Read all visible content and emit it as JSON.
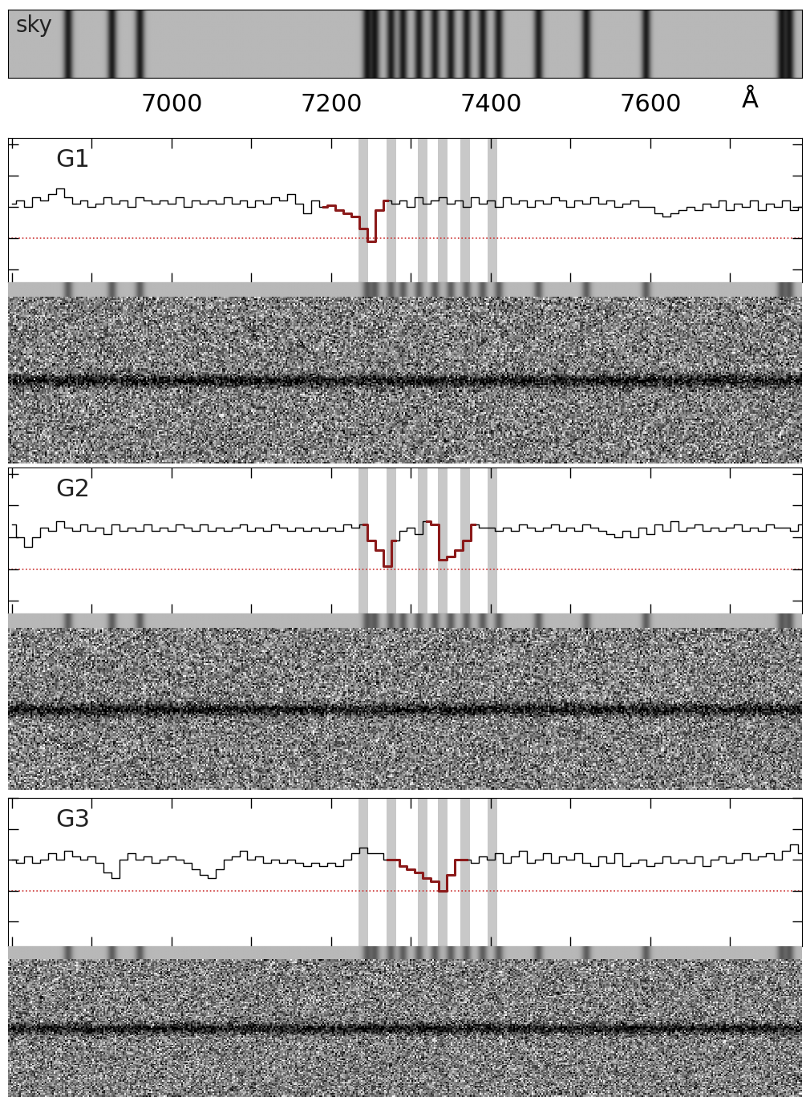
{
  "xlim": [
    6795,
    7790
  ],
  "xticks": [
    7000,
    7200,
    7400,
    7600
  ],
  "x_unit": "Å",
  "sky": {
    "label": "sky",
    "sky_lines": [
      6870,
      6925,
      6960,
      7245,
      7255,
      7275,
      7290,
      7310,
      7330,
      7350,
      7370,
      7390,
      7410,
      7460,
      7520,
      7595,
      7765,
      7775
    ]
  },
  "x": [
    6800,
    6810,
    6820,
    6830,
    6840,
    6850,
    6860,
    6870,
    6880,
    6890,
    6900,
    6910,
    6920,
    6930,
    6940,
    6950,
    6960,
    6970,
    6980,
    6990,
    7000,
    7010,
    7020,
    7030,
    7040,
    7050,
    7060,
    7070,
    7080,
    7090,
    7100,
    7110,
    7120,
    7130,
    7140,
    7150,
    7160,
    7170,
    7180,
    7190,
    7200,
    7210,
    7220,
    7230,
    7240,
    7250,
    7260,
    7270,
    7280,
    7290,
    7300,
    7310,
    7320,
    7330,
    7340,
    7350,
    7360,
    7370,
    7380,
    7390,
    7400,
    7410,
    7420,
    7430,
    7440,
    7450,
    7460,
    7470,
    7480,
    7490,
    7500,
    7510,
    7520,
    7530,
    7540,
    7550,
    7560,
    7570,
    7580,
    7590,
    7600,
    7610,
    7620,
    7630,
    7640,
    7650,
    7660,
    7670,
    7680,
    7690,
    7700,
    7710,
    7720,
    7730,
    7740,
    7750,
    7760,
    7770,
    7780,
    7790
  ],
  "chart_data": [
    {
      "type": "line",
      "label": "G1",
      "ylim": [
        -1.4,
        3.2
      ],
      "yticks": [
        -1,
        0,
        1,
        2,
        3
      ],
      "xticks": [
        6800,
        6900,
        7000,
        7100,
        7200,
        7300,
        7400,
        7500,
        7600,
        7700
      ],
      "tick_labels": false,
      "color": "#000000",
      "bands": [
        [
          7234,
          7246
        ],
        [
          7269,
          7281
        ],
        [
          7309,
          7321
        ],
        [
          7334,
          7346
        ],
        [
          7362,
          7374
        ],
        [
          7396,
          7408
        ]
      ],
      "reference_line": {
        "value": 0,
        "color": "#cc3333",
        "line_style": "dotted"
      },
      "highlight": {
        "color": "#8b1a1a",
        "ranges": [
          [
            7190,
            7270
          ]
        ]
      },
      "values": [
        1.1,
        1.2,
        1.0,
        1.3,
        1.2,
        1.4,
        1.6,
        1.3,
        1.1,
        1.2,
        1.0,
        1.1,
        1.3,
        1.1,
        1.2,
        1.0,
        1.3,
        1.2,
        1.1,
        1.2,
        1.1,
        1.3,
        1.0,
        1.2,
        1.1,
        1.2,
        1.1,
        1.3,
        1.1,
        1.2,
        1.0,
        1.2,
        1.1,
        1.3,
        1.2,
        1.4,
        1.1,
        0.8,
        1.2,
        1.0,
        1.05,
        0.9,
        0.8,
        0.7,
        0.3,
        -0.1,
        0.9,
        1.2,
        1.1,
        1.2,
        1.0,
        1.3,
        1.1,
        1.2,
        1.3,
        1.1,
        1.2,
        1.0,
        1.3,
        1.1,
        1.2,
        1.0,
        1.3,
        1.1,
        1.2,
        1.0,
        1.2,
        1.1,
        1.3,
        1.2,
        1.0,
        1.2,
        1.1,
        1.3,
        1.1,
        1.2,
        1.0,
        1.1,
        1.2,
        1.0,
        1.0,
        0.8,
        0.7,
        0.8,
        0.9,
        1.0,
        0.9,
        1.1,
        1.0,
        1.2,
        0.9,
        1.1,
        1.0,
        1.2,
        0.9,
        1.1,
        1.0,
        1.2,
        0.9,
        1.0
      ]
    },
    {
      "type": "line",
      "label": "G2",
      "ylim": [
        -1.4,
        3.2
      ],
      "yticks": [
        -1,
        0,
        1,
        2,
        3
      ],
      "xticks": [
        6800,
        6900,
        7000,
        7100,
        7200,
        7300,
        7400,
        7500,
        7600,
        7700
      ],
      "tick_labels": false,
      "color": "#000000",
      "bands": [
        [
          7234,
          7246
        ],
        [
          7269,
          7281
        ],
        [
          7309,
          7321
        ],
        [
          7334,
          7346
        ],
        [
          7362,
          7374
        ],
        [
          7396,
          7408
        ]
      ],
      "reference_line": {
        "value": 0,
        "color": "#cc3333",
        "line_style": "dotted"
      },
      "highlight": {
        "color": "#8b1a1a",
        "ranges": [
          [
            7240,
            7280
          ],
          [
            7320,
            7380
          ]
        ]
      },
      "values": [
        1.4,
        1.0,
        0.7,
        1.0,
        1.3,
        1.2,
        1.5,
        1.3,
        1.2,
        1.4,
        1.2,
        1.3,
        1.1,
        1.4,
        1.2,
        1.3,
        1.2,
        1.4,
        1.2,
        1.3,
        1.2,
        1.4,
        1.3,
        1.2,
        1.4,
        1.2,
        1.3,
        1.2,
        1.3,
        1.4,
        1.2,
        1.3,
        1.2,
        1.4,
        1.3,
        1.2,
        1.3,
        1.2,
        1.3,
        1.2,
        1.3,
        1.2,
        1.4,
        1.3,
        1.4,
        0.9,
        0.6,
        0.1,
        0.9,
        1.2,
        1.3,
        1.1,
        1.5,
        1.4,
        0.3,
        0.4,
        0.6,
        0.9,
        1.4,
        1.3,
        1.3,
        1.2,
        1.3,
        1.2,
        1.4,
        1.3,
        1.2,
        1.3,
        1.4,
        1.2,
        1.3,
        1.2,
        1.4,
        1.3,
        1.2,
        1.1,
        1.0,
        1.2,
        1.0,
        1.3,
        1.1,
        1.4,
        1.2,
        1.5,
        1.2,
        1.3,
        1.4,
        1.2,
        1.3,
        1.2,
        1.3,
        1.4,
        1.2,
        1.3,
        1.2,
        1.4,
        1.3,
        1.3,
        1.2,
        1.4
      ]
    },
    {
      "type": "line",
      "label": "G3",
      "ylim": [
        -1.8,
        3.0
      ],
      "yticks": [
        -1,
        0,
        1,
        2,
        3
      ],
      "xticks": [
        6800,
        6900,
        7000,
        7100,
        7200,
        7300,
        7400,
        7500,
        7600,
        7700
      ],
      "tick_labels": false,
      "color": "#000000",
      "bands": [
        [
          7234,
          7246
        ],
        [
          7269,
          7281
        ],
        [
          7309,
          7321
        ],
        [
          7334,
          7346
        ],
        [
          7362,
          7374
        ],
        [
          7396,
          7408
        ]
      ],
      "reference_line": {
        "value": 0,
        "color": "#cc3333",
        "line_style": "dotted"
      },
      "highlight": {
        "color": "#8b1a1a",
        "ranges": [
          [
            7270,
            7370
          ]
        ]
      },
      "values": [
        1.0,
        0.9,
        1.1,
        0.9,
        1.0,
        1.2,
        1.0,
        1.3,
        1.1,
        1.0,
        1.1,
        0.9,
        0.6,
        0.4,
        1.0,
        1.2,
        1.0,
        1.1,
        0.9,
        1.0,
        1.1,
        1.0,
        0.9,
        0.7,
        0.5,
        0.4,
        0.7,
        1.0,
        1.1,
        1.3,
        1.0,
        1.1,
        0.9,
        1.0,
        0.9,
        1.0,
        0.9,
        0.8,
        0.9,
        0.8,
        0.9,
        0.8,
        1.0,
        1.2,
        1.4,
        1.2,
        1.2,
        1.0,
        1.0,
        0.8,
        0.7,
        0.6,
        0.4,
        0.3,
        0.0,
        0.5,
        1.0,
        1.0,
        0.9,
        1.1,
        1.0,
        1.2,
        0.9,
        1.1,
        1.3,
        0.9,
        1.0,
        1.2,
        0.9,
        1.1,
        1.0,
        1.2,
        0.9,
        0.8,
        1.1,
        0.9,
        1.2,
        0.8,
        0.9,
        1.0,
        0.8,
        0.9,
        1.1,
        0.9,
        1.0,
        0.9,
        1.1,
        0.8,
        1.0,
        1.1,
        0.9,
        1.0,
        1.2,
        1.0,
        1.1,
        1.2,
        1.0,
        1.3,
        1.5,
        1.2
      ]
    }
  ]
}
